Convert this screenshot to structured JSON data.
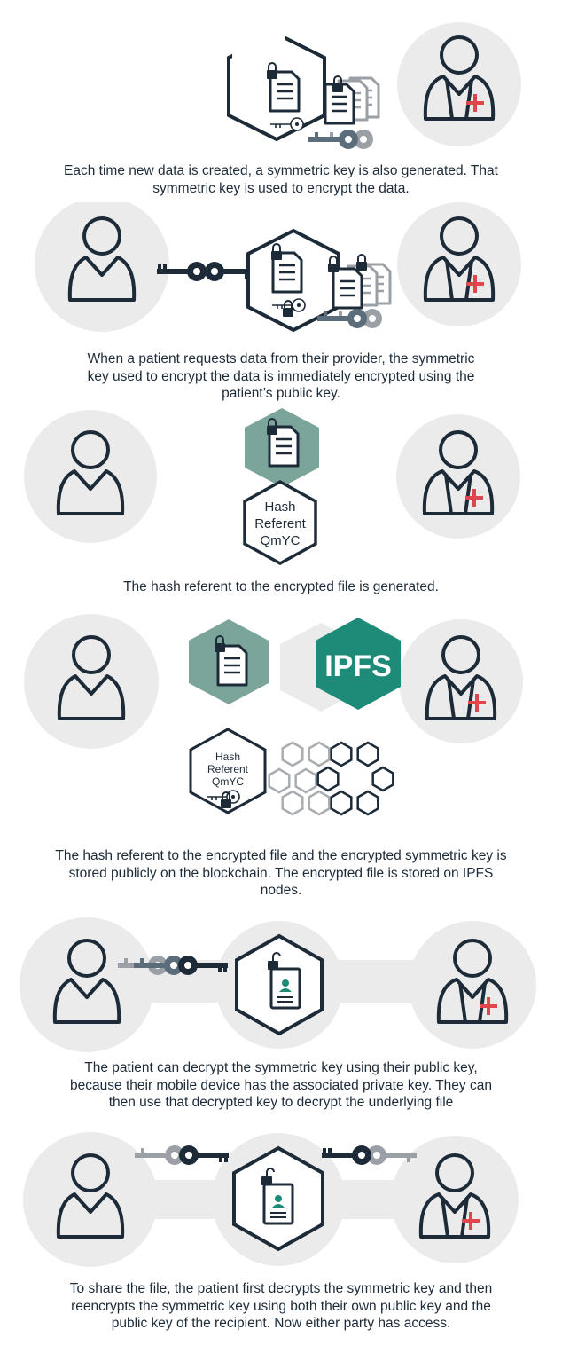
{
  "steps": [
    {
      "caption": "Each time new data is created, a symmetric key is also generated. That symmetric key is used to encrypt the data."
    },
    {
      "caption": "When a patient requests data from their provider, the symmetric key used to encrypt the data is immediately encrypted using the patient’s public key."
    },
    {
      "caption": "The hash referent to the encrypted file is generated.",
      "hash_lines": [
        "Hash",
        "Referent",
        "QmYC"
      ]
    },
    {
      "caption": "The hash referent to the encrypted file and the encrypted symmetric key is stored publicly on the blockchain. The encrypted file is stored on IPFS nodes.",
      "ipfs_label": "IPFS",
      "hash_lines": [
        "Hash",
        "Referent",
        "QmYC"
      ]
    },
    {
      "caption": "The patient can decrypt the symmetric key using their public key, because their mobile device has the associated private key. They can then use that decrypted key to decrypt the underlying file"
    },
    {
      "caption": "To share the file, the patient first decrypts the symmetric key and then reencrypts the symmetric key using both their own public key and the public key of the recipient. Now either party has access."
    }
  ],
  "colors": {
    "navy": "#1d2b39",
    "circle_bg": "#ebebeb",
    "teal": "#1e8a78",
    "sage": "#7ba59b",
    "medical_cross": "#e0474c",
    "gray_key": "#9aa0a6",
    "slate_key": "#5b6c7a",
    "chain_gray": "#a9adb1"
  },
  "icons": [
    "person-icon",
    "doctor-icon",
    "document-icon",
    "lock-icon",
    "key-icon",
    "hexagon-icon",
    "blockchain-icon",
    "ipfs-icon"
  ]
}
